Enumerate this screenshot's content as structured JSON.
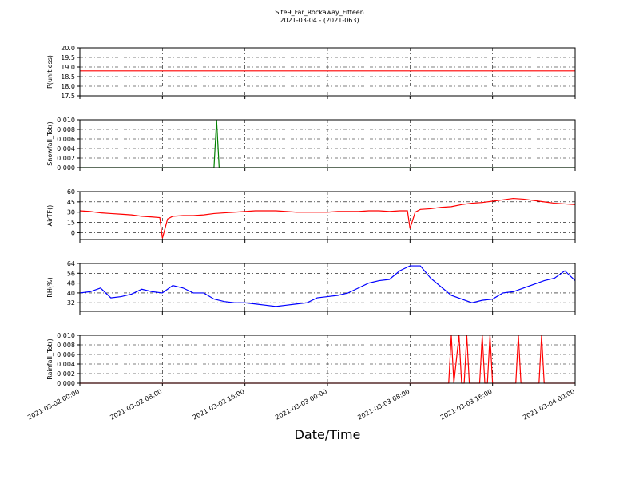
{
  "title": "Site9_Far_Rockaway_Fifteen",
  "subtitle": "2021-03-04 - (2021-063)",
  "xlabel": "Date/Time",
  "chart_data": [
    {
      "type": "line",
      "ylabel": "P(unitless)",
      "xlim": [
        "2021-03-02 00:00",
        "2021-03-04 00:00"
      ],
      "xticks": [
        "2021-03-02 00:00",
        "2021-03-02 08:00",
        "2021-03-02 16:00",
        "2021-03-03 00:00",
        "2021-03-03 08:00",
        "2021-03-03 16:00",
        "2021-03-04 00:00"
      ],
      "ylim": [
        17.5,
        20.0
      ],
      "yticks": [
        17.5,
        {
          "value": 18,
          "label": "18.0"
        },
        18.5,
        {
          "value": 19,
          "label": "19.0"
        },
        19.5,
        {
          "value": 20,
          "label": "20.0"
        }
      ],
      "grid": true,
      "x": [
        "2021-03-02 00:00",
        "2021-03-04 00:00"
      ],
      "series": [
        {
          "color": "#ff0000",
          "values": [
            18.8,
            18.8
          ]
        }
      ]
    },
    {
      "type": "line",
      "ylabel": "Snowfall_Tot()",
      "xlim": [
        "2021-03-02 00:00",
        "2021-03-04 00:00"
      ],
      "xticks": [
        "2021-03-02 00:00",
        "2021-03-02 08:00",
        "2021-03-02 16:00",
        "2021-03-03 00:00",
        "2021-03-03 08:00",
        "2021-03-03 16:00",
        "2021-03-04 00:00"
      ],
      "ylim": [
        0,
        0.01
      ],
      "yticks": [
        {
          "value": 0,
          "label": "0.000"
        },
        {
          "value": 0.002,
          "label": "0.002"
        },
        {
          "value": 0.004,
          "label": "0.004"
        },
        {
          "value": 0.006,
          "label": "0.006"
        },
        {
          "value": 0.008,
          "label": "0.008"
        },
        {
          "value": 0.01,
          "label": "0.010"
        }
      ],
      "grid": true,
      "x": [
        "2021-03-02 00:00",
        "2021-03-02 13:00",
        "2021-03-02 13:15",
        "2021-03-02 13:30",
        "2021-03-04 00:00"
      ],
      "series": [
        {
          "color": "#008000",
          "values": [
            0,
            0,
            0.01,
            0,
            0
          ]
        }
      ]
    },
    {
      "type": "line",
      "ylabel": "AirTF()",
      "xlim": [
        "2021-03-02 00:00",
        "2021-03-04 00:00"
      ],
      "xticks": [
        "2021-03-02 00:00",
        "2021-03-02 08:00",
        "2021-03-02 16:00",
        "2021-03-03 00:00",
        "2021-03-03 08:00",
        "2021-03-03 16:00",
        "2021-03-04 00:00"
      ],
      "ylim": [
        -10,
        60
      ],
      "yticks": [
        0,
        15,
        30,
        45,
        60
      ],
      "grid": true,
      "x": [
        "2021-03-02 00:00",
        "2021-03-02 01:00",
        "2021-03-02 02:00",
        "2021-03-02 03:00",
        "2021-03-02 04:00",
        "2021-03-02 05:00",
        "2021-03-02 06:00",
        "2021-03-02 07:00",
        "2021-03-02 07:45",
        "2021-03-02 08:00",
        "2021-03-02 08:30",
        "2021-03-02 09:00",
        "2021-03-02 10:00",
        "2021-03-02 11:00",
        "2021-03-02 12:00",
        "2021-03-02 13:00",
        "2021-03-02 14:00",
        "2021-03-02 15:00",
        "2021-03-02 16:00",
        "2021-03-02 17:00",
        "2021-03-02 18:00",
        "2021-03-02 19:00",
        "2021-03-02 20:00",
        "2021-03-02 21:00",
        "2021-03-02 22:00",
        "2021-03-02 23:00",
        "2021-03-03 00:00",
        "2021-03-03 01:00",
        "2021-03-03 02:00",
        "2021-03-03 03:00",
        "2021-03-03 04:00",
        "2021-03-03 05:00",
        "2021-03-03 06:00",
        "2021-03-03 07:00",
        "2021-03-03 07:45",
        "2021-03-03 08:00",
        "2021-03-03 08:30",
        "2021-03-03 09:00",
        "2021-03-03 10:00",
        "2021-03-03 11:00",
        "2021-03-03 12:00",
        "2021-03-03 13:00",
        "2021-03-03 14:00",
        "2021-03-03 15:00",
        "2021-03-03 16:00",
        "2021-03-03 17:00",
        "2021-03-03 18:00",
        "2021-03-03 19:00",
        "2021-03-03 20:00",
        "2021-03-03 21:00",
        "2021-03-03 22:00",
        "2021-03-03 23:00",
        "2021-03-04 00:00"
      ],
      "series": [
        {
          "color": "#ff0000",
          "values": [
            32,
            31,
            29,
            28,
            27,
            26,
            24,
            23,
            22,
            -8,
            20,
            24,
            25,
            25,
            26,
            28,
            29,
            30,
            31,
            32,
            32,
            32,
            31,
            30,
            30,
            30,
            30,
            31,
            31,
            31,
            32,
            32,
            31,
            32,
            32,
            6,
            30,
            34,
            35,
            37,
            38,
            41,
            43,
            44,
            46,
            48,
            50,
            49,
            47,
            45,
            43,
            42,
            41
          ]
        }
      ]
    },
    {
      "type": "line",
      "ylabel": "RH(%)",
      "xlim": [
        "2021-03-02 00:00",
        "2021-03-04 00:00"
      ],
      "xticks": [
        "2021-03-02 00:00",
        "2021-03-02 08:00",
        "2021-03-02 16:00",
        "2021-03-03 00:00",
        "2021-03-03 08:00",
        "2021-03-03 16:00",
        "2021-03-04 00:00"
      ],
      "ylim": [
        25,
        64
      ],
      "yticks": [
        32,
        40,
        48,
        56,
        64
      ],
      "grid": true,
      "x": [
        "2021-03-02 00:00",
        "2021-03-02 01:00",
        "2021-03-02 02:00",
        "2021-03-02 03:00",
        "2021-03-02 04:00",
        "2021-03-02 05:00",
        "2021-03-02 06:00",
        "2021-03-02 07:00",
        "2021-03-02 08:00",
        "2021-03-02 09:00",
        "2021-03-02 10:00",
        "2021-03-02 11:00",
        "2021-03-02 12:00",
        "2021-03-02 13:00",
        "2021-03-02 14:00",
        "2021-03-02 15:00",
        "2021-03-02 16:00",
        "2021-03-02 17:00",
        "2021-03-02 18:00",
        "2021-03-02 19:00",
        "2021-03-02 20:00",
        "2021-03-02 21:00",
        "2021-03-02 22:00",
        "2021-03-02 23:00",
        "2021-03-03 00:00",
        "2021-03-03 01:00",
        "2021-03-03 02:00",
        "2021-03-03 03:00",
        "2021-03-03 04:00",
        "2021-03-03 05:00",
        "2021-03-03 06:00",
        "2021-03-03 07:00",
        "2021-03-03 08:00",
        "2021-03-03 09:00",
        "2021-03-03 10:00",
        "2021-03-03 11:00",
        "2021-03-03 12:00",
        "2021-03-03 13:00",
        "2021-03-03 14:00",
        "2021-03-03 15:00",
        "2021-03-03 16:00",
        "2021-03-03 17:00",
        "2021-03-03 18:00",
        "2021-03-03 19:00",
        "2021-03-03 20:00",
        "2021-03-03 21:00",
        "2021-03-03 22:00",
        "2021-03-03 23:00",
        "2021-03-04 00:00"
      ],
      "series": [
        {
          "color": "#0000ff",
          "values": [
            40,
            41,
            44,
            36,
            37,
            39,
            43,
            41,
            40,
            46,
            44,
            40,
            40,
            35,
            33,
            32,
            32,
            31,
            30,
            29,
            30,
            31,
            32,
            36,
            37,
            38,
            40,
            44,
            48,
            50,
            51,
            58,
            62,
            62,
            52,
            45,
            38,
            35,
            32,
            34,
            35,
            40,
            41,
            44,
            47,
            50,
            52,
            58,
            50
          ]
        }
      ]
    },
    {
      "type": "line",
      "ylabel": "Rainfall_Tot()",
      "xlim": [
        "2021-03-02 00:00",
        "2021-03-04 00:00"
      ],
      "xticks": [
        "2021-03-02 00:00",
        "2021-03-02 08:00",
        "2021-03-02 16:00",
        "2021-03-03 00:00",
        "2021-03-03 08:00",
        "2021-03-03 16:00",
        "2021-03-04 00:00"
      ],
      "ylim": [
        0,
        0.01
      ],
      "yticks": [
        {
          "value": 0,
          "label": "0.000"
        },
        {
          "value": 0.002,
          "label": "0.002"
        },
        {
          "value": 0.004,
          "label": "0.004"
        },
        {
          "value": 0.006,
          "label": "0.006"
        },
        {
          "value": 0.008,
          "label": "0.008"
        },
        {
          "value": 0.01,
          "label": "0.010"
        }
      ],
      "grid": true,
      "x": [
        "2021-03-02 00:00",
        "2021-03-03 11:45",
        "2021-03-03 12:00",
        "2021-03-03 12:15",
        "2021-03-03 12:45",
        "2021-03-03 13:00",
        "2021-03-03 13:15",
        "2021-03-03 13:30",
        "2021-03-03 13:45",
        "2021-03-03 14:45",
        "2021-03-03 15:00",
        "2021-03-03 15:15",
        "2021-03-03 15:30",
        "2021-03-03 15:45",
        "2021-03-03 16:00",
        "2021-03-03 18:15",
        "2021-03-03 18:30",
        "2021-03-03 18:45",
        "2021-03-03 20:30",
        "2021-03-03 20:45",
        "2021-03-03 21:00",
        "2021-03-04 00:00"
      ],
      "series": [
        {
          "color": "#ff0000",
          "values": [
            0,
            0,
            0.01,
            0,
            0.01,
            0,
            0,
            0.01,
            0,
            0,
            0.01,
            0,
            0,
            0.01,
            0,
            0,
            0.01,
            0,
            0,
            0.01,
            0,
            0
          ]
        }
      ]
    }
  ]
}
